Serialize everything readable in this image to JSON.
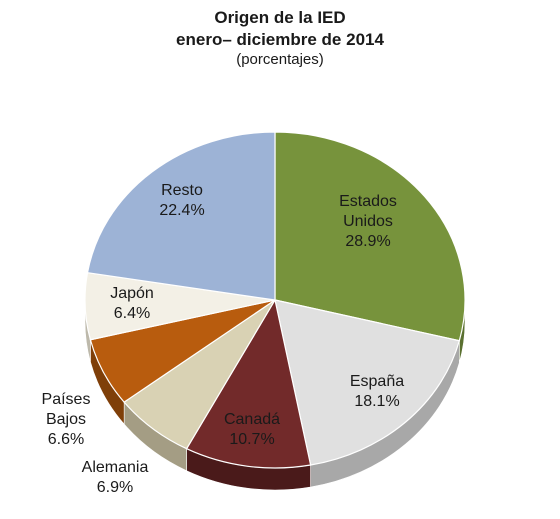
{
  "chart_data": {
    "type": "pie",
    "title": "Origen de la IED",
    "subtitle": "enero– diciembre de 2014",
    "unit": "(porcentajes)",
    "slices": [
      {
        "name": "Estados Unidos",
        "label_lines": [
          "Estados",
          "Unidos"
        ],
        "value_label": "28.9%",
        "value": 28.9,
        "color": "#77933c",
        "side": "#5a7030"
      },
      {
        "name": "España",
        "label_lines": [
          "España"
        ],
        "value_label": "18.1%",
        "value": 18.1,
        "color": "#e0e0e0",
        "side": "#a8a8a8"
      },
      {
        "name": "Canadá",
        "label_lines": [
          "Canadá"
        ],
        "value_label": "10.7%",
        "value": 10.7,
        "color": "#722a2a",
        "side": "#4a1a1a"
      },
      {
        "name": "Alemania",
        "label_lines": [
          "Alemania"
        ],
        "value_label": "6.9%",
        "value": 6.9,
        "color": "#d9d2b4",
        "side": "#a49d84"
      },
      {
        "name": "Países Bajos",
        "label_lines": [
          "Países",
          "Bajos"
        ],
        "value_label": "6.6%",
        "value": 6.6,
        "color": "#b85c0e",
        "side": "#7f3f09"
      },
      {
        "name": "Japón",
        "label_lines": [
          "Japón"
        ],
        "value_label": "6.4%",
        "value": 6.4,
        "color": "#f3f0e6",
        "side": "#bdb9ab"
      },
      {
        "name": "Resto",
        "label_lines": [
          "Resto"
        ],
        "value_label": "22.4%",
        "value": 22.4,
        "color": "#9db3d6",
        "side": "#6f84a6"
      }
    ]
  }
}
